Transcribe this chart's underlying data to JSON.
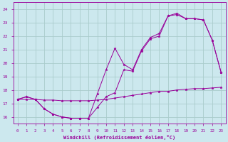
{
  "xlabel": "Windchill (Refroidissement éolien,°C)",
  "bg_color": "#cce8ee",
  "grid_color": "#aacccc",
  "line_color": "#990099",
  "xlim": [
    -0.5,
    23.5
  ],
  "ylim": [
    15.5,
    24.5
  ],
  "yticks": [
    16,
    17,
    18,
    19,
    20,
    21,
    22,
    23,
    24
  ],
  "xticks": [
    0,
    1,
    2,
    3,
    4,
    5,
    6,
    7,
    8,
    9,
    10,
    11,
    12,
    13,
    14,
    15,
    16,
    17,
    18,
    19,
    20,
    21,
    22,
    23
  ],
  "line1_x": [
    0,
    1,
    2,
    3,
    4,
    5,
    6,
    7,
    8,
    9,
    10,
    11,
    12,
    13,
    14,
    15,
    16,
    17,
    18,
    19,
    20,
    21,
    22,
    23
  ],
  "line1_y": [
    17.3,
    17.5,
    17.3,
    16.6,
    16.2,
    16.0,
    15.9,
    15.9,
    15.9,
    16.7,
    17.5,
    17.8,
    19.5,
    19.4,
    20.9,
    21.8,
    22.0,
    23.5,
    23.6,
    23.3,
    23.3,
    23.2,
    21.7,
    19.3
  ],
  "line2_x": [
    0,
    1,
    2,
    3,
    4,
    5,
    6,
    7,
    8,
    9,
    10,
    11,
    12,
    13,
    14,
    15,
    16,
    17,
    18,
    19,
    20,
    21,
    22,
    23
  ],
  "line2_y": [
    17.3,
    17.3,
    17.3,
    17.25,
    17.25,
    17.2,
    17.2,
    17.2,
    17.2,
    17.25,
    17.3,
    17.4,
    17.5,
    17.6,
    17.7,
    17.8,
    17.9,
    17.9,
    18.0,
    18.05,
    18.1,
    18.1,
    18.15,
    18.2
  ],
  "line3_x": [
    0,
    1,
    2,
    3,
    4,
    5,
    6,
    7,
    8,
    9,
    10,
    11,
    12,
    13,
    14,
    15,
    16,
    17,
    18,
    19,
    20,
    21,
    22,
    23
  ],
  "line3_y": [
    17.3,
    17.5,
    17.3,
    16.6,
    16.2,
    16.0,
    15.9,
    15.9,
    15.9,
    17.7,
    19.5,
    21.1,
    19.9,
    19.5,
    21.0,
    21.9,
    22.2,
    23.5,
    23.7,
    23.3,
    23.3,
    23.2,
    21.7,
    19.3
  ]
}
